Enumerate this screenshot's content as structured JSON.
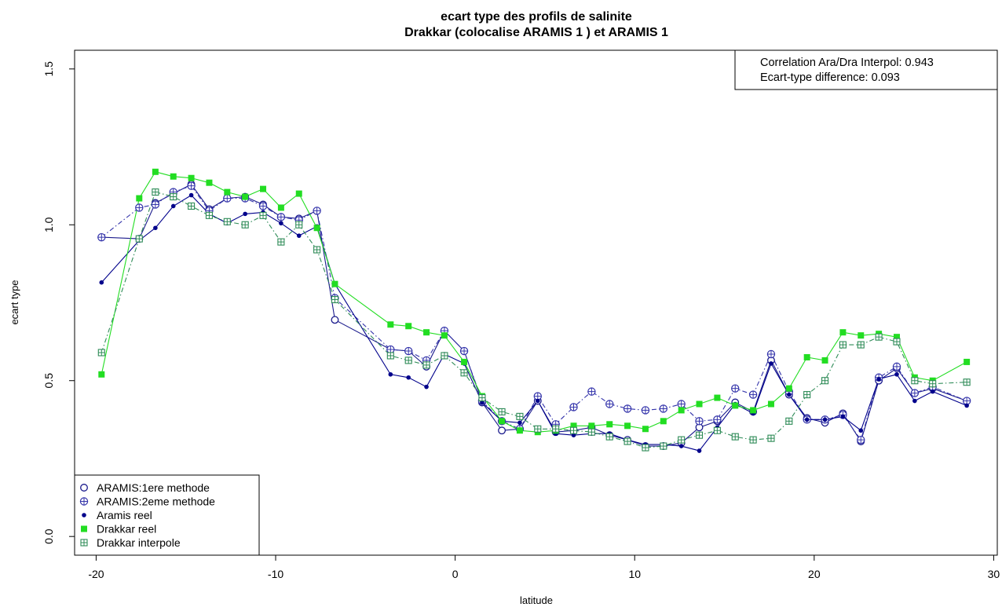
{
  "chart_data": {
    "type": "line",
    "title": "ecart type des profils de salinite",
    "subtitle": "Drakkar (colocalise ARAMIS 1 ) et ARAMIS 1",
    "xlabel": "latitude",
    "ylabel": "ecart type",
    "xlim": [
      -21.2,
      30.2
    ],
    "ylim": [
      -0.06,
      1.56
    ],
    "x_ticks": [
      -20,
      -10,
      0,
      10,
      20,
      30
    ],
    "x_tick_labels": [
      "-20",
      "-10",
      "0",
      "10",
      "20",
      "30"
    ],
    "y_ticks": [
      0.0,
      0.5,
      1.0,
      1.5
    ],
    "y_tick_labels": [
      "0.0",
      "0.5",
      "1.0",
      "1.5"
    ],
    "grid": false,
    "legend_position": "bottom-left",
    "annotation_lines": [
      "Correlation Ara/Dra Interpol: 0.943",
      "Ecart-type difference: 0.093"
    ],
    "series": [
      {
        "name": "ARAMIS:1ere methode",
        "marker": "open-circle",
        "color": "#1a1a8c",
        "line_style": "solid",
        "x": [
          -19.7,
          -17.6,
          -16.7,
          -15.7,
          -14.7,
          -13.7,
          -12.7,
          -11.7,
          -10.7,
          -9.7,
          -8.7,
          -7.7,
          -6.7,
          -3.6,
          -2.6,
          -1.6,
          -0.6,
          0.5,
          1.5,
          2.6,
          3.6,
          4.6,
          5.6,
          6.6,
          7.6,
          8.6,
          9.6,
          10.6,
          11.6,
          12.6,
          13.6,
          14.6,
          15.6,
          16.6,
          17.6,
          18.6,
          19.6,
          20.6,
          21.6,
          22.6,
          23.6,
          24.6,
          25.6,
          26.6,
          28.5
        ],
        "y": [
          0.96,
          0.955,
          1.07,
          1.1,
          1.13,
          1.05,
          1.085,
          1.09,
          1.065,
          1.025,
          1.02,
          1.045,
          0.695,
          0.6,
          0.595,
          0.545,
          0.66,
          0.595,
          0.43,
          0.34,
          0.345,
          0.435,
          0.335,
          0.34,
          0.35,
          0.325,
          0.31,
          0.29,
          0.29,
          0.3,
          0.35,
          0.37,
          0.43,
          0.4,
          0.565,
          0.455,
          0.38,
          0.365,
          0.395,
          0.305,
          0.5,
          0.54,
          0.46,
          0.475,
          0.435
        ]
      },
      {
        "name": "ARAMIS:2eme methode",
        "marker": "circle-plus",
        "color": "#3333aa",
        "line_style": "dashdot",
        "x": [
          -19.7,
          -17.6,
          -16.7,
          -15.7,
          -14.7,
          -13.7,
          -12.7,
          -11.7,
          -10.7,
          -9.7,
          -8.7,
          -7.7,
          -6.7,
          -3.6,
          -2.6,
          -1.6,
          -0.6,
          0.5,
          1.5,
          2.6,
          3.6,
          4.6,
          5.6,
          6.6,
          7.6,
          8.6,
          9.6,
          10.6,
          11.6,
          12.6,
          13.6,
          14.6,
          15.6,
          16.6,
          17.6,
          18.6,
          19.6,
          20.6,
          21.6,
          22.6,
          23.6,
          24.6,
          25.6,
          26.6,
          28.5
        ],
        "y": [
          0.96,
          1.055,
          1.065,
          1.105,
          1.125,
          1.045,
          1.085,
          1.085,
          1.06,
          1.025,
          1.015,
          1.045,
          0.765,
          0.6,
          0.595,
          0.565,
          0.66,
          0.595,
          0.435,
          0.37,
          0.345,
          0.45,
          0.36,
          0.415,
          0.465,
          0.425,
          0.41,
          0.405,
          0.41,
          0.425,
          0.37,
          0.375,
          0.475,
          0.455,
          0.585,
          0.465,
          0.375,
          0.375,
          0.39,
          0.31,
          0.51,
          0.545,
          0.46,
          0.48,
          0.435
        ]
      },
      {
        "name": "Aramis reel",
        "marker": "filled-dot",
        "color": "#00008b",
        "line_style": "solid",
        "x": [
          -19.7,
          -17.6,
          -16.7,
          -15.7,
          -14.7,
          -13.7,
          -12.7,
          -11.7,
          -10.7,
          -9.7,
          -8.7,
          -7.7,
          -6.7,
          -3.6,
          -2.6,
          -1.6,
          -0.6,
          0.5,
          1.5,
          2.6,
          3.6,
          4.6,
          5.6,
          6.6,
          7.6,
          8.6,
          9.6,
          10.6,
          11.6,
          12.6,
          13.6,
          14.6,
          15.6,
          16.6,
          17.6,
          18.6,
          19.6,
          20.6,
          21.6,
          22.6,
          23.6,
          24.6,
          25.6,
          26.6,
          28.5
        ],
        "y": [
          0.815,
          0.95,
          0.99,
          1.06,
          1.095,
          1.035,
          1.005,
          1.035,
          1.04,
          1.005,
          0.965,
          0.995,
          0.81,
          0.52,
          0.51,
          0.48,
          0.585,
          0.555,
          0.43,
          0.37,
          0.365,
          0.435,
          0.33,
          0.325,
          0.33,
          0.33,
          0.31,
          0.295,
          0.295,
          0.29,
          0.275,
          0.35,
          0.425,
          0.395,
          0.555,
          0.455,
          0.375,
          0.375,
          0.385,
          0.34,
          0.505,
          0.52,
          0.435,
          0.465,
          0.42
        ]
      },
      {
        "name": "Drakkar reel",
        "marker": "filled-square",
        "color": "#22dd22",
        "line_style": "solid",
        "x": [
          -19.7,
          -17.6,
          -16.7,
          -15.7,
          -14.7,
          -13.7,
          -12.7,
          -11.7,
          -10.7,
          -9.7,
          -8.7,
          -7.7,
          -6.7,
          -3.6,
          -2.6,
          -1.6,
          -0.6,
          0.5,
          1.5,
          2.6,
          3.6,
          4.6,
          5.6,
          6.6,
          7.6,
          8.6,
          9.6,
          10.6,
          11.6,
          12.6,
          13.6,
          14.6,
          15.6,
          16.6,
          17.6,
          18.6,
          19.6,
          20.6,
          21.6,
          22.6,
          23.6,
          24.6,
          25.6,
          26.6,
          28.5
        ],
        "y": [
          0.52,
          1.085,
          1.17,
          1.155,
          1.15,
          1.135,
          1.105,
          1.09,
          1.115,
          1.055,
          1.1,
          0.99,
          0.81,
          0.68,
          0.675,
          0.655,
          0.645,
          0.56,
          0.45,
          0.37,
          0.34,
          0.335,
          0.34,
          0.355,
          0.355,
          0.36,
          0.355,
          0.345,
          0.37,
          0.405,
          0.425,
          0.445,
          0.42,
          0.405,
          0.425,
          0.475,
          0.575,
          0.565,
          0.655,
          0.645,
          0.65,
          0.64,
          0.51,
          0.5,
          0.56
        ]
      },
      {
        "name": "Drakkar interpole",
        "marker": "square-plus",
        "color": "#2e8b57",
        "line_style": "dashdot",
        "x": [
          -19.7,
          -17.6,
          -16.7,
          -15.7,
          -14.7,
          -13.7,
          -12.7,
          -11.7,
          -10.7,
          -9.7,
          -8.7,
          -7.7,
          -6.7,
          -3.6,
          -2.6,
          -1.6,
          -0.6,
          0.5,
          1.5,
          2.6,
          3.6,
          4.6,
          5.6,
          6.6,
          7.6,
          8.6,
          9.6,
          10.6,
          11.6,
          12.6,
          13.6,
          14.6,
          15.6,
          16.6,
          17.6,
          18.6,
          19.6,
          20.6,
          21.6,
          22.6,
          23.6,
          24.6,
          25.6,
          26.6,
          28.5
        ],
        "y": [
          0.59,
          0.955,
          1.105,
          1.09,
          1.06,
          1.03,
          1.01,
          1.0,
          1.03,
          0.945,
          1.0,
          0.92,
          0.76,
          0.58,
          0.565,
          0.55,
          0.58,
          0.525,
          0.445,
          0.4,
          0.385,
          0.345,
          0.345,
          0.34,
          0.335,
          0.32,
          0.305,
          0.285,
          0.29,
          0.31,
          0.325,
          0.34,
          0.32,
          0.31,
          0.315,
          0.37,
          0.455,
          0.5,
          0.615,
          0.615,
          0.64,
          0.625,
          0.5,
          0.49,
          0.495
        ]
      }
    ]
  }
}
